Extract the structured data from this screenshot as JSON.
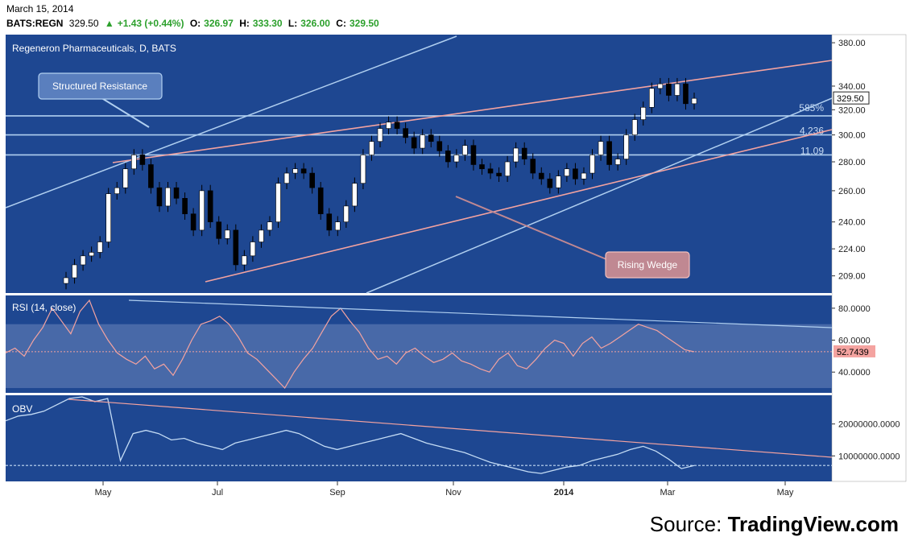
{
  "header": {
    "date": "March 15, 2014",
    "symbol": "BATS:REGN",
    "last": "329.50",
    "change": "+1.43 (+0.44%)",
    "open_label": "O:",
    "open": "326.97",
    "high_label": "H:",
    "high": "333.30",
    "low_label": "L:",
    "low": "326.00",
    "close_label": "C:",
    "close": "329.50"
  },
  "colors": {
    "background": "#1e4791",
    "rsi_band": "#4869a8",
    "resistance_line": "#b0cff0",
    "wedge_line": "#f4a3a0",
    "candle_up": "#ffffff",
    "candle_down": "#000000",
    "rsi_line": "#f4a3a0",
    "obv_line": "#c4dcf5"
  },
  "source": {
    "prefix": "Source: ",
    "name": "TradingView.com"
  },
  "chart_data": [
    {
      "type": "candlestick",
      "title": "Regeneron Pharmaceuticals, D, BATS",
      "x_ticks": [
        "May",
        "Jul",
        "Sep",
        "Nov",
        "2014",
        "Mar",
        "May"
      ],
      "y_ticks": [
        "380.00",
        "340.00",
        "320.00",
        "300.00",
        "280.00",
        "260.00",
        "240.00",
        "224.00",
        "209.00"
      ],
      "y_scale": "log",
      "ylim": [
        200,
        388
      ],
      "last_price_label": "329.50",
      "close_series": [
        208,
        215,
        220,
        222,
        228,
        258,
        262,
        275,
        285,
        278,
        262,
        250,
        262,
        255,
        245,
        235,
        260,
        240,
        230,
        235,
        215,
        220,
        228,
        235,
        240,
        265,
        272,
        275,
        272,
        262,
        245,
        235,
        240,
        250,
        265,
        285,
        295,
        305,
        310,
        305,
        298,
        290,
        300,
        295,
        288,
        280,
        285,
        292,
        278,
        275,
        272,
        270,
        280,
        290,
        282,
        272,
        268,
        262,
        270,
        275,
        268,
        272,
        285,
        295,
        278,
        282,
        300,
        312,
        322,
        338,
        342,
        332,
        342,
        325,
        329.5
      ],
      "annotations": [
        {
          "text": "Structured Resistance"
        },
        {
          "text": "Rising Wedge"
        },
        {
          "text": "585%"
        },
        {
          "text": "4.236"
        },
        {
          "text": "11.09"
        }
      ]
    },
    {
      "type": "line",
      "title": "RSI (14, close)",
      "y_ticks": [
        "80.0000",
        "60.0000",
        "40.0000"
      ],
      "ylim": [
        27,
        88
      ],
      "band": [
        30,
        70
      ],
      "last_value_label": "52.7439",
      "series": [
        {
          "values": [
            52,
            55,
            50,
            60,
            68,
            80,
            72,
            64,
            78,
            85,
            70,
            60,
            52,
            48,
            45,
            50,
            42,
            45,
            38,
            48,
            60,
            70,
            72,
            75,
            70,
            62,
            52,
            48,
            42,
            36,
            30,
            40,
            48,
            55,
            65,
            75,
            80,
            72,
            65,
            55,
            48,
            50,
            45,
            52,
            55,
            50,
            46,
            48,
            52,
            47,
            45,
            42,
            40,
            48,
            52,
            44,
            42,
            48,
            55,
            60,
            58,
            50,
            58,
            62,
            55,
            58,
            62,
            66,
            70,
            68,
            66,
            62,
            58,
            54,
            52.74
          ]
        }
      ]
    },
    {
      "type": "line",
      "title": "OBV",
      "y_ticks": [
        "20000000.0000",
        "10000000.0000"
      ],
      "ylim": [
        2000000,
        29000000
      ],
      "series": [
        {
          "values": [
            21000000,
            22500000,
            23000000,
            24000000,
            26000000,
            28000000,
            28500000,
            27000000,
            28000000,
            8500000,
            17000000,
            18000000,
            17000000,
            15000000,
            15500000,
            14000000,
            13000000,
            12000000,
            14000000,
            15000000,
            16000000,
            17000000,
            18000000,
            17000000,
            15000000,
            13000000,
            12000000,
            13000000,
            14000000,
            15000000,
            16000000,
            17000000,
            15500000,
            14000000,
            13000000,
            12000000,
            11000000,
            9500000,
            8000000,
            7000000,
            6000000,
            5000000,
            4500000,
            5500000,
            6500000,
            7000000,
            8500000,
            9500000,
            10500000,
            12000000,
            13000000,
            11500000,
            9000000,
            6000000,
            7000000
          ]
        }
      ]
    }
  ]
}
